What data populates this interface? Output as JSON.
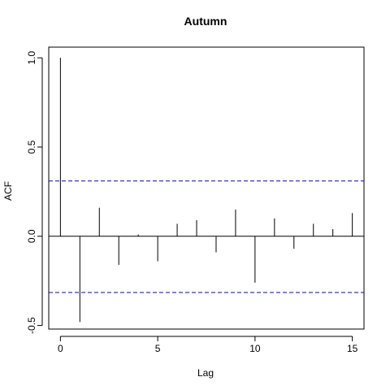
{
  "chart_data": {
    "type": "bar",
    "title": "Autumn",
    "xlabel": "Lag",
    "ylabel": "ACF",
    "xlim": [
      -0.6,
      15.6
    ],
    "ylim": [
      -0.52,
      1.06
    ],
    "x_ticks": [
      0,
      5,
      10,
      15
    ],
    "x_tick_labels": [
      "0",
      "5",
      "10",
      "15"
    ],
    "y_ticks": [
      -0.5,
      0.0,
      0.5,
      1.0
    ],
    "y_tick_labels": [
      "-0.5",
      "0.0",
      "0.5",
      "1.0"
    ],
    "x": [
      0,
      1,
      2,
      3,
      4,
      5,
      6,
      7,
      8,
      9,
      10,
      11,
      12,
      13,
      14,
      15
    ],
    "values": [
      1.0,
      -0.48,
      0.16,
      -0.16,
      0.01,
      -0.14,
      0.07,
      0.09,
      -0.09,
      0.15,
      -0.26,
      0.1,
      -0.07,
      0.07,
      0.04,
      0.13
    ],
    "confidence_bounds": [
      0.31,
      -0.315
    ],
    "colors": {
      "spike": "#000000",
      "bound": "#0000cd",
      "zero": "#000000"
    },
    "grid": false
  }
}
